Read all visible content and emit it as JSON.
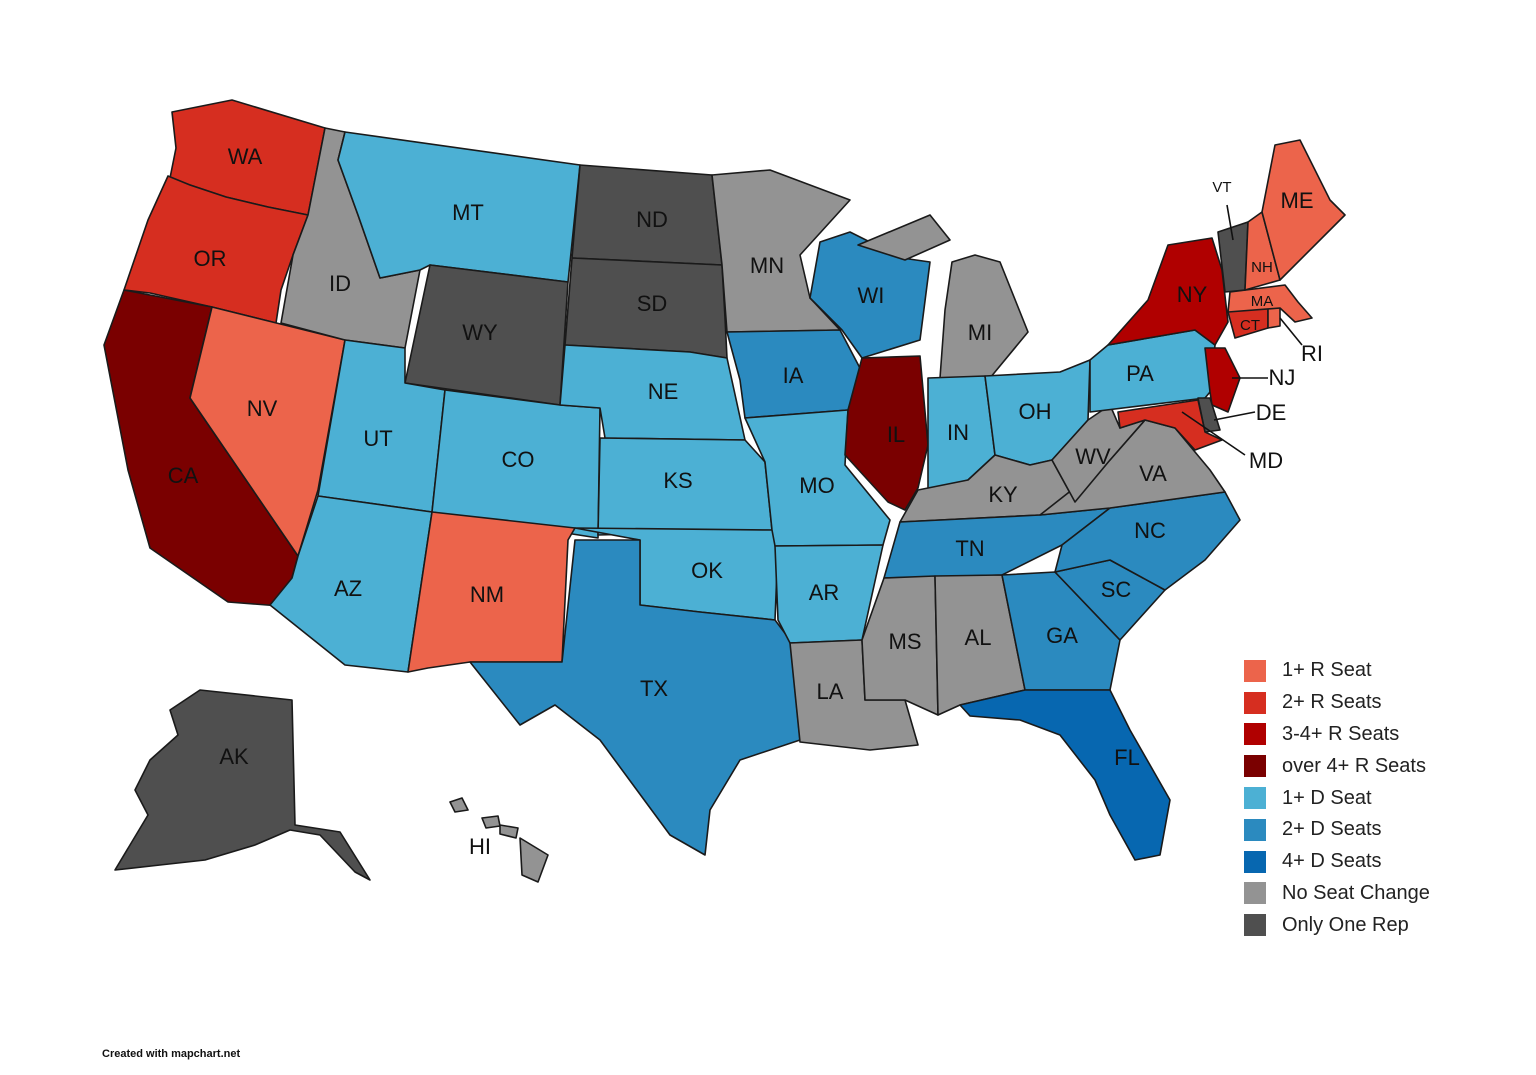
{
  "colors": {
    "r1": "#ec644b",
    "r2": "#d62e20",
    "r3": "#b00000",
    "r4": "#7a0000",
    "d1": "#4cb0d4",
    "d2": "#2b8abf",
    "d4": "#0767b0",
    "none": "#939393",
    "one": "#4f4f4f"
  },
  "legend": [
    {
      "key": "r1",
      "label": "1+ R Seat"
    },
    {
      "key": "r2",
      "label": "2+ R Seats"
    },
    {
      "key": "r3",
      "label": "3-4+ R Seats"
    },
    {
      "key": "r4",
      "label": "over 4+ R Seats"
    },
    {
      "key": "d1",
      "label": "1+ D Seat"
    },
    {
      "key": "d2",
      "label": "2+ D Seats"
    },
    {
      "key": "d4",
      "label": "4+ D Seats"
    },
    {
      "key": "none",
      "label": "No Seat Change"
    },
    {
      "key": "one",
      "label": "Only One Rep"
    }
  ],
  "states": [
    {
      "code": "WA",
      "label": "WA",
      "category": "r2"
    },
    {
      "code": "OR",
      "label": "OR",
      "category": "r2"
    },
    {
      "code": "CA",
      "label": "CA",
      "category": "r4"
    },
    {
      "code": "NV",
      "label": "NV",
      "category": "r1"
    },
    {
      "code": "ID",
      "label": "ID",
      "category": "none"
    },
    {
      "code": "MT",
      "label": "MT",
      "category": "d1"
    },
    {
      "code": "WY",
      "label": "WY",
      "category": "one"
    },
    {
      "code": "UT",
      "label": "UT",
      "category": "d1"
    },
    {
      "code": "AZ",
      "label": "AZ",
      "category": "d1"
    },
    {
      "code": "CO",
      "label": "CO",
      "category": "d1"
    },
    {
      "code": "NM",
      "label": "NM",
      "category": "r1"
    },
    {
      "code": "ND",
      "label": "ND",
      "category": "one"
    },
    {
      "code": "SD",
      "label": "SD",
      "category": "one"
    },
    {
      "code": "NE",
      "label": "NE",
      "category": "d1"
    },
    {
      "code": "KS",
      "label": "KS",
      "category": "d1"
    },
    {
      "code": "OK",
      "label": "OK",
      "category": "d1"
    },
    {
      "code": "TX",
      "label": "TX",
      "category": "d2"
    },
    {
      "code": "MN",
      "label": "MN",
      "category": "none"
    },
    {
      "code": "IA",
      "label": "IA",
      "category": "d2"
    },
    {
      "code": "MO",
      "label": "MO",
      "category": "d1"
    },
    {
      "code": "AR",
      "label": "AR",
      "category": "d1"
    },
    {
      "code": "LA",
      "label": "LA",
      "category": "none"
    },
    {
      "code": "WI",
      "label": "WI",
      "category": "d2"
    },
    {
      "code": "IL",
      "label": "IL",
      "category": "r4"
    },
    {
      "code": "MI",
      "label": "MI",
      "category": "none"
    },
    {
      "code": "IN",
      "label": "IN",
      "category": "d1"
    },
    {
      "code": "OH",
      "label": "OH",
      "category": "d1"
    },
    {
      "code": "KY",
      "label": "KY",
      "category": "none"
    },
    {
      "code": "TN",
      "label": "TN",
      "category": "d2"
    },
    {
      "code": "MS",
      "label": "MS",
      "category": "none"
    },
    {
      "code": "AL",
      "label": "AL",
      "category": "none"
    },
    {
      "code": "GA",
      "label": "GA",
      "category": "d2"
    },
    {
      "code": "FL",
      "label": "FL",
      "category": "d4"
    },
    {
      "code": "SC",
      "label": "SC",
      "category": "d2"
    },
    {
      "code": "NC",
      "label": "NC",
      "category": "d2"
    },
    {
      "code": "VA",
      "label": "VA",
      "category": "none"
    },
    {
      "code": "WV",
      "label": "WV",
      "category": "none"
    },
    {
      "code": "PA",
      "label": "PA",
      "category": "d1"
    },
    {
      "code": "NY",
      "label": "NY",
      "category": "r3"
    },
    {
      "code": "NJ",
      "label": "NJ",
      "category": "r3"
    },
    {
      "code": "DE",
      "label": "DE",
      "category": "one"
    },
    {
      "code": "MD",
      "label": "MD",
      "category": "r2"
    },
    {
      "code": "CT",
      "label": "CT",
      "category": "r2"
    },
    {
      "code": "RI",
      "label": "RI",
      "category": "r1"
    },
    {
      "code": "MA",
      "label": "MA",
      "category": "r1"
    },
    {
      "code": "VT",
      "label": "VT",
      "category": "one"
    },
    {
      "code": "NH",
      "label": "NH",
      "category": "r1"
    },
    {
      "code": "ME",
      "label": "ME",
      "category": "r1"
    },
    {
      "code": "AK",
      "label": "AK",
      "category": "one"
    },
    {
      "code": "HI",
      "label": "HI",
      "category": "none"
    }
  ],
  "credit": "Created with mapchart.net"
}
